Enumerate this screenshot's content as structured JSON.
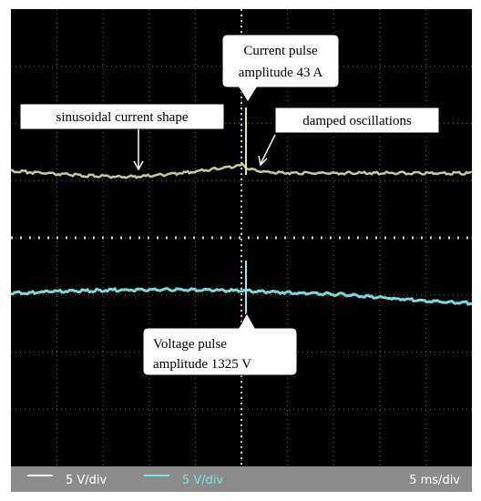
{
  "annotations": [
    {
      "lines": [
        "Current pulse",
        "amplitude 43 A"
      ]
    },
    {
      "lines": [
        "sinusoidal current shape"
      ]
    },
    {
      "lines": [
        "damped oscillations"
      ]
    },
    {
      "lines": [
        "Voltage pulse",
        "amplitude 1325 V"
      ]
    }
  ],
  "footer": {
    "channel_1": "5 V/div",
    "channel_2": "5 V/div",
    "timebase": "5 ms/div"
  }
}
